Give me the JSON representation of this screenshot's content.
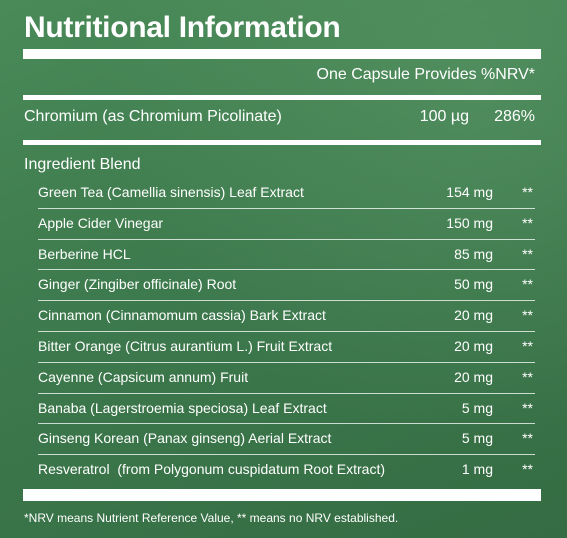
{
  "title": "Nutritional Information",
  "header": {
    "provides": "One Capsule Provides %NRV*"
  },
  "chromium": {
    "name": "Chromium (as Chromium Picolinate)",
    "amount": "100 µg",
    "nrv": "286%"
  },
  "blend": {
    "title": "Ingredient Blend",
    "items": [
      {
        "name": "Green Tea (Camellia sinensis) Leaf Extract",
        "amount": "154 mg",
        "nrv": "**"
      },
      {
        "name": "Apple Cider Vinegar",
        "amount": "150 mg",
        "nrv": "**"
      },
      {
        "name": "Berberine HCL",
        "amount": "85 mg",
        "nrv": "**"
      },
      {
        "name": "Ginger (Zingiber officinale) Root",
        "amount": "50 mg",
        "nrv": "**"
      },
      {
        "name": "Cinnamon (Cinnamomum cassia) Bark Extract",
        "amount": "20 mg",
        "nrv": "**"
      },
      {
        "name": "Bitter Orange (Citrus aurantium L.) Fruit Extract",
        "amount": "20 mg",
        "nrv": "**"
      },
      {
        "name": "Cayenne (Capsicum annum) Fruit",
        "amount": "20 mg",
        "nrv": "**"
      },
      {
        "name": "Banaba (Lagerstroemia speciosa) Leaf Extract",
        "amount": "5 mg",
        "nrv": "**"
      },
      {
        "name": "Ginseng Korean (Panax ginseng) Aerial Extract",
        "amount": "5 mg",
        "nrv": "**"
      },
      {
        "name": "Resveratrol  (from Polygonum cuspidatum Root Extract)",
        "amount": "1 mg",
        "nrv": "**"
      }
    ]
  },
  "footnote": "*NRV means Nutrient Reference Value, ** means no NRV established.",
  "colors": {
    "background": "#3f7d4f",
    "text": "#ffffff"
  }
}
